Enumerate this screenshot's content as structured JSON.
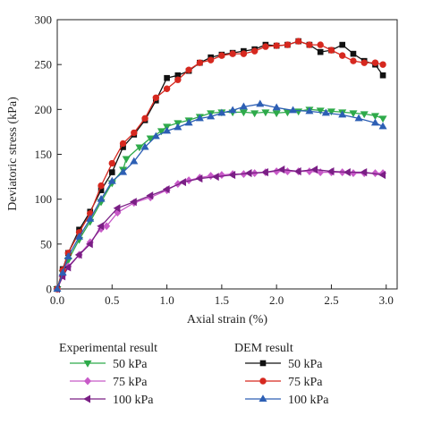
{
  "chart_data": {
    "type": "line",
    "xlabel": "Axial strain (%)",
    "ylabel": "Deviatoric stress (kPa)",
    "xlim": [
      0,
      3.1
    ],
    "ylim": [
      0,
      300
    ],
    "xticks": [
      "0.0",
      "0.5",
      "1.0",
      "1.5",
      "2.0",
      "2.5",
      "3.0"
    ],
    "yticks": [
      "0",
      "50",
      "100",
      "150",
      "200",
      "250",
      "300"
    ],
    "legend": {
      "placement": "bottom",
      "group_titles": [
        "Experimental result",
        "DEM result"
      ]
    },
    "series": [
      {
        "name": "50 kPa",
        "group": "Experimental result",
        "marker": "triangle-down",
        "color": "#2eaa4a",
        "points": [
          [
            0,
            0
          ],
          [
            0.05,
            18
          ],
          [
            0.1,
            32
          ],
          [
            0.2,
            55
          ],
          [
            0.3,
            75
          ],
          [
            0.4,
            97
          ],
          [
            0.5,
            118
          ],
          [
            0.6,
            133
          ],
          [
            0.63,
            145
          ],
          [
            0.75,
            158
          ],
          [
            0.85,
            168
          ],
          [
            0.95,
            176
          ],
          [
            1.0,
            181
          ],
          [
            1.1,
            185
          ],
          [
            1.2,
            188
          ],
          [
            1.3,
            192
          ],
          [
            1.4,
            196
          ],
          [
            1.5,
            197
          ],
          [
            1.6,
            197
          ],
          [
            1.7,
            197
          ],
          [
            1.8,
            196
          ],
          [
            1.9,
            197
          ],
          [
            2.0,
            196
          ],
          [
            2.1,
            197
          ],
          [
            2.2,
            198
          ],
          [
            2.3,
            200
          ],
          [
            2.4,
            199
          ],
          [
            2.5,
            198
          ],
          [
            2.6,
            197
          ],
          [
            2.7,
            196
          ],
          [
            2.8,
            195
          ],
          [
            2.9,
            193
          ],
          [
            2.97,
            190
          ]
        ]
      },
      {
        "name": "75 kPa",
        "group": "Experimental result",
        "marker": "diamond",
        "color": "#c85ac8",
        "points": [
          [
            0,
            0
          ],
          [
            0.05,
            15
          ],
          [
            0.1,
            25
          ],
          [
            0.2,
            38
          ],
          [
            0.3,
            52
          ],
          [
            0.4,
            67
          ],
          [
            0.45,
            70
          ],
          [
            0.55,
            85
          ],
          [
            0.7,
            96
          ],
          [
            0.85,
            102
          ],
          [
            1.0,
            110
          ],
          [
            1.1,
            117
          ],
          [
            1.2,
            121
          ],
          [
            1.3,
            124
          ],
          [
            1.4,
            126
          ],
          [
            1.5,
            127
          ],
          [
            1.6,
            128
          ],
          [
            1.7,
            128
          ],
          [
            1.8,
            129
          ],
          [
            1.9,
            130
          ],
          [
            2.0,
            131
          ],
          [
            2.1,
            131
          ],
          [
            2.2,
            131
          ],
          [
            2.3,
            131
          ],
          [
            2.4,
            130
          ],
          [
            2.5,
            130
          ],
          [
            2.6,
            130
          ],
          [
            2.7,
            129
          ],
          [
            2.8,
            129
          ],
          [
            2.9,
            129
          ],
          [
            2.97,
            129
          ]
        ]
      },
      {
        "name": "100 kPa",
        "group": "Experimental result",
        "marker": "triangle-left",
        "color": "#7a1f85",
        "points": [
          [
            0,
            0
          ],
          [
            0.05,
            14
          ],
          [
            0.1,
            24
          ],
          [
            0.2,
            38
          ],
          [
            0.3,
            50
          ],
          [
            0.4,
            70
          ],
          [
            0.55,
            90
          ],
          [
            0.7,
            97
          ],
          [
            0.85,
            104
          ],
          [
            1.0,
            111
          ],
          [
            1.15,
            119
          ],
          [
            1.3,
            123
          ],
          [
            1.45,
            125
          ],
          [
            1.6,
            127
          ],
          [
            1.75,
            129
          ],
          [
            1.9,
            130
          ],
          [
            2.05,
            133
          ],
          [
            2.2,
            131
          ],
          [
            2.35,
            133
          ],
          [
            2.5,
            131
          ],
          [
            2.65,
            130
          ],
          [
            2.8,
            130
          ],
          [
            2.97,
            127
          ]
        ]
      },
      {
        "name": "50 kPa",
        "group": "DEM result",
        "marker": "square",
        "color": "#111111",
        "points": [
          [
            0,
            0
          ],
          [
            0.05,
            22
          ],
          [
            0.1,
            40
          ],
          [
            0.2,
            66
          ],
          [
            0.3,
            86
          ],
          [
            0.4,
            110
          ],
          [
            0.5,
            130
          ],
          [
            0.6,
            158
          ],
          [
            0.7,
            172
          ],
          [
            0.8,
            188
          ],
          [
            0.9,
            210
          ],
          [
            1.0,
            235
          ],
          [
            1.1,
            238
          ],
          [
            1.2,
            243
          ],
          [
            1.3,
            252
          ],
          [
            1.4,
            258
          ],
          [
            1.5,
            261
          ],
          [
            1.6,
            263
          ],
          [
            1.7,
            265
          ],
          [
            1.8,
            267
          ],
          [
            1.9,
            272
          ],
          [
            2.0,
            271
          ],
          [
            2.1,
            272
          ],
          [
            2.2,
            276
          ],
          [
            2.3,
            272
          ],
          [
            2.4,
            264
          ],
          [
            2.5,
            266
          ],
          [
            2.6,
            272
          ],
          [
            2.7,
            262
          ],
          [
            2.8,
            254
          ],
          [
            2.9,
            250
          ],
          [
            2.97,
            238
          ]
        ]
      },
      {
        "name": "75 kPa",
        "group": "DEM result",
        "marker": "circle",
        "color": "#d6281f",
        "points": [
          [
            0,
            0
          ],
          [
            0.05,
            21
          ],
          [
            0.1,
            40
          ],
          [
            0.2,
            63
          ],
          [
            0.3,
            84
          ],
          [
            0.4,
            115
          ],
          [
            0.5,
            140
          ],
          [
            0.6,
            162
          ],
          [
            0.7,
            174
          ],
          [
            0.8,
            190
          ],
          [
            0.9,
            213
          ],
          [
            1.0,
            223
          ],
          [
            1.1,
            233
          ],
          [
            1.2,
            244
          ],
          [
            1.3,
            252
          ],
          [
            1.4,
            255
          ],
          [
            1.5,
            260
          ],
          [
            1.6,
            262
          ],
          [
            1.7,
            262
          ],
          [
            1.8,
            265
          ],
          [
            1.9,
            270
          ],
          [
            2.0,
            271
          ],
          [
            2.1,
            272
          ],
          [
            2.2,
            276
          ],
          [
            2.3,
            272
          ],
          [
            2.4,
            272
          ],
          [
            2.5,
            266
          ],
          [
            2.6,
            260
          ],
          [
            2.7,
            254
          ],
          [
            2.8,
            252
          ],
          [
            2.9,
            252
          ],
          [
            2.97,
            250
          ]
        ]
      },
      {
        "name": "100 kPa",
        "group": "DEM result",
        "marker": "triangle-up",
        "color": "#2d5fb4",
        "points": [
          [
            0,
            0
          ],
          [
            0.05,
            18
          ],
          [
            0.1,
            36
          ],
          [
            0.2,
            58
          ],
          [
            0.3,
            78
          ],
          [
            0.4,
            100
          ],
          [
            0.5,
            120
          ],
          [
            0.6,
            130
          ],
          [
            0.7,
            142
          ],
          [
            0.8,
            158
          ],
          [
            0.9,
            170
          ],
          [
            1.0,
            176
          ],
          [
            1.1,
            180
          ],
          [
            1.2,
            185
          ],
          [
            1.3,
            190
          ],
          [
            1.4,
            192
          ],
          [
            1.5,
            196
          ],
          [
            1.6,
            199
          ],
          [
            1.7,
            203
          ],
          [
            1.85,
            206
          ],
          [
            2.0,
            202
          ],
          [
            2.15,
            199
          ],
          [
            2.3,
            198
          ],
          [
            2.45,
            196
          ],
          [
            2.6,
            194
          ],
          [
            2.75,
            190
          ],
          [
            2.9,
            185
          ],
          [
            2.97,
            181
          ]
        ]
      }
    ]
  }
}
